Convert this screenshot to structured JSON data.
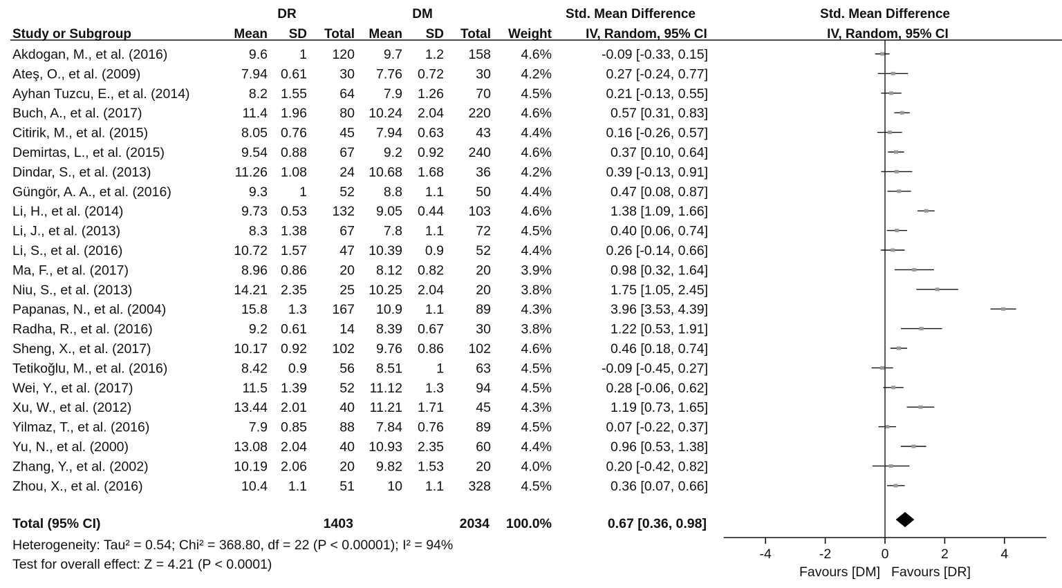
{
  "chart_data": {
    "type": "forest",
    "group_headers": {
      "experimental": "DR",
      "control": "DM",
      "effect_table": "Std. Mean Difference",
      "effect_plot": "Std. Mean Difference"
    },
    "column_headers": {
      "study": "Study or Subgroup",
      "exp_mean": "Mean",
      "exp_sd": "SD",
      "exp_total": "Total",
      "ctl_mean": "Mean",
      "ctl_sd": "SD",
      "ctl_total": "Total",
      "weight": "Weight",
      "ci_table": "IV, Random, 95% CI",
      "ci_plot": "IV, Random, 95% CI"
    },
    "studies": [
      {
        "study": "Akdogan, M., et al. (2016)",
        "exp_mean": "9.6",
        "exp_sd": "1",
        "exp_total": "120",
        "ctl_mean": "9.7",
        "ctl_sd": "1.2",
        "ctl_total": "158",
        "weight": "4.6%",
        "ci_text": "-0.09 [-0.33, 0.15]",
        "smd": -0.09,
        "lo": -0.33,
        "hi": 0.15
      },
      {
        "study": "Ateş, O., et al. (2009)",
        "exp_mean": "7.94",
        "exp_sd": "0.61",
        "exp_total": "30",
        "ctl_mean": "7.76",
        "ctl_sd": "0.72",
        "ctl_total": "30",
        "weight": "4.2%",
        "ci_text": "0.27 [-0.24, 0.77]",
        "smd": 0.27,
        "lo": -0.24,
        "hi": 0.77
      },
      {
        "study": "Ayhan Tuzcu, E., et al. (2014)",
        "exp_mean": "8.2",
        "exp_sd": "1.55",
        "exp_total": "64",
        "ctl_mean": "7.9",
        "ctl_sd": "1.26",
        "ctl_total": "70",
        "weight": "4.5%",
        "ci_text": "0.21 [-0.13, 0.55]",
        "smd": 0.21,
        "lo": -0.13,
        "hi": 0.55
      },
      {
        "study": "Buch, A., et al. (2017)",
        "exp_mean": "11.4",
        "exp_sd": "1.96",
        "exp_total": "80",
        "ctl_mean": "10.24",
        "ctl_sd": "2.04",
        "ctl_total": "220",
        "weight": "4.6%",
        "ci_text": "0.57 [0.31, 0.83]",
        "smd": 0.57,
        "lo": 0.31,
        "hi": 0.83
      },
      {
        "study": "Citirik, M., et al. (2015)",
        "exp_mean": "8.05",
        "exp_sd": "0.76",
        "exp_total": "45",
        "ctl_mean": "7.94",
        "ctl_sd": "0.63",
        "ctl_total": "43",
        "weight": "4.4%",
        "ci_text": "0.16 [-0.26, 0.57]",
        "smd": 0.16,
        "lo": -0.26,
        "hi": 0.57
      },
      {
        "study": "Demirtas, L., et al. (2015)",
        "exp_mean": "9.54",
        "exp_sd": "0.88",
        "exp_total": "67",
        "ctl_mean": "9.2",
        "ctl_sd": "0.92",
        "ctl_total": "240",
        "weight": "4.6%",
        "ci_text": "0.37 [0.10, 0.64]",
        "smd": 0.37,
        "lo": 0.1,
        "hi": 0.64
      },
      {
        "study": "Dindar, S., et al. (2013)",
        "exp_mean": "11.26",
        "exp_sd": "1.08",
        "exp_total": "24",
        "ctl_mean": "10.68",
        "ctl_sd": "1.68",
        "ctl_total": "36",
        "weight": "4.2%",
        "ci_text": "0.39 [-0.13, 0.91]",
        "smd": 0.39,
        "lo": -0.13,
        "hi": 0.91
      },
      {
        "study": "Güngör, A. A., et al. (2016)",
        "exp_mean": "9.3",
        "exp_sd": "1",
        "exp_total": "52",
        "ctl_mean": "8.8",
        "ctl_sd": "1.1",
        "ctl_total": "50",
        "weight": "4.4%",
        "ci_text": "0.47 [0.08, 0.87]",
        "smd": 0.47,
        "lo": 0.08,
        "hi": 0.87
      },
      {
        "study": "Li, H., et al. (2014)",
        "exp_mean": "9.73",
        "exp_sd": "0.53",
        "exp_total": "132",
        "ctl_mean": "9.05",
        "ctl_sd": "0.44",
        "ctl_total": "103",
        "weight": "4.6%",
        "ci_text": "1.38 [1.09, 1.66]",
        "smd": 1.38,
        "lo": 1.09,
        "hi": 1.66
      },
      {
        "study": "Li, J., et al. (2013)",
        "exp_mean": "8.3",
        "exp_sd": "1.38",
        "exp_total": "67",
        "ctl_mean": "7.8",
        "ctl_sd": "1.1",
        "ctl_total": "72",
        "weight": "4.5%",
        "ci_text": "0.40 [0.06, 0.74]",
        "smd": 0.4,
        "lo": 0.06,
        "hi": 0.74
      },
      {
        "study": "Li, S., et al. (2016)",
        "exp_mean": "10.72",
        "exp_sd": "1.57",
        "exp_total": "47",
        "ctl_mean": "10.39",
        "ctl_sd": "0.9",
        "ctl_total": "52",
        "weight": "4.4%",
        "ci_text": "0.26 [-0.14, 0.66]",
        "smd": 0.26,
        "lo": -0.14,
        "hi": 0.66
      },
      {
        "study": "Ma, F., et al. (2017)",
        "exp_mean": "8.96",
        "exp_sd": "0.86",
        "exp_total": "20",
        "ctl_mean": "8.12",
        "ctl_sd": "0.82",
        "ctl_total": "20",
        "weight": "3.9%",
        "ci_text": "0.98 [0.32, 1.64]",
        "smd": 0.98,
        "lo": 0.32,
        "hi": 1.64
      },
      {
        "study": "Niu, S., et al. (2013)",
        "exp_mean": "14.21",
        "exp_sd": "2.35",
        "exp_total": "25",
        "ctl_mean": "10.25",
        "ctl_sd": "2.04",
        "ctl_total": "20",
        "weight": "3.8%",
        "ci_text": "1.75 [1.05, 2.45]",
        "smd": 1.75,
        "lo": 1.05,
        "hi": 2.45
      },
      {
        "study": "Papanas, N., et al. (2004)",
        "exp_mean": "15.8",
        "exp_sd": "1.3",
        "exp_total": "167",
        "ctl_mean": "10.9",
        "ctl_sd": "1.1",
        "ctl_total": "89",
        "weight": "4.3%",
        "ci_text": "3.96 [3.53, 4.39]",
        "smd": 3.96,
        "lo": 3.53,
        "hi": 4.39
      },
      {
        "study": "Radha, R., et al. (2016)",
        "exp_mean": "9.2",
        "exp_sd": "0.61",
        "exp_total": "14",
        "ctl_mean": "8.39",
        "ctl_sd": "0.67",
        "ctl_total": "30",
        "weight": "3.8%",
        "ci_text": "1.22 [0.53, 1.91]",
        "smd": 1.22,
        "lo": 0.53,
        "hi": 1.91
      },
      {
        "study": "Sheng, X., et al. (2017)",
        "exp_mean": "10.17",
        "exp_sd": "0.92",
        "exp_total": "102",
        "ctl_mean": "9.76",
        "ctl_sd": "0.86",
        "ctl_total": "102",
        "weight": "4.6%",
        "ci_text": "0.46 [0.18, 0.74]",
        "smd": 0.46,
        "lo": 0.18,
        "hi": 0.74
      },
      {
        "study": "Tetikoğlu, M., et al. (2016)",
        "exp_mean": "8.42",
        "exp_sd": "0.9",
        "exp_total": "56",
        "ctl_mean": "8.51",
        "ctl_sd": "1",
        "ctl_total": "63",
        "weight": "4.5%",
        "ci_text": "-0.09 [-0.45, 0.27]",
        "smd": -0.09,
        "lo": -0.45,
        "hi": 0.27
      },
      {
        "study": "Wei, Y., et al. (2017)",
        "exp_mean": "11.5",
        "exp_sd": "1.39",
        "exp_total": "52",
        "ctl_mean": "11.12",
        "ctl_sd": "1.3",
        "ctl_total": "94",
        "weight": "4.5%",
        "ci_text": "0.28 [-0.06, 0.62]",
        "smd": 0.28,
        "lo": -0.06,
        "hi": 0.62
      },
      {
        "study": "Xu, W., et al. (2012)",
        "exp_mean": "13.44",
        "exp_sd": "2.01",
        "exp_total": "40",
        "ctl_mean": "11.21",
        "ctl_sd": "1.71",
        "ctl_total": "45",
        "weight": "4.3%",
        "ci_text": "1.19 [0.73, 1.65]",
        "smd": 1.19,
        "lo": 0.73,
        "hi": 1.65
      },
      {
        "study": "Yilmaz, T., et al. (2016)",
        "exp_mean": "7.9",
        "exp_sd": "0.85",
        "exp_total": "88",
        "ctl_mean": "7.84",
        "ctl_sd": "0.76",
        "ctl_total": "89",
        "weight": "4.5%",
        "ci_text": "0.07 [-0.22, 0.37]",
        "smd": 0.07,
        "lo": -0.22,
        "hi": 0.37
      },
      {
        "study": "Yu, N., et al. (2000)",
        "exp_mean": "13.08",
        "exp_sd": "2.04",
        "exp_total": "40",
        "ctl_mean": "10.93",
        "ctl_sd": "2.35",
        "ctl_total": "60",
        "weight": "4.4%",
        "ci_text": "0.96 [0.53, 1.38]",
        "smd": 0.96,
        "lo": 0.53,
        "hi": 1.38
      },
      {
        "study": "Zhang, Y., et al. (2002)",
        "exp_mean": "10.19",
        "exp_sd": "2.06",
        "exp_total": "20",
        "ctl_mean": "9.82",
        "ctl_sd": "1.53",
        "ctl_total": "20",
        "weight": "4.0%",
        "ci_text": "0.20 [-0.42, 0.82]",
        "smd": 0.2,
        "lo": -0.42,
        "hi": 0.82
      },
      {
        "study": "Zhou, X., et al. (2016)",
        "exp_mean": "10.4",
        "exp_sd": "1.1",
        "exp_total": "51",
        "ctl_mean": "10",
        "ctl_sd": "1.1",
        "ctl_total": "328",
        "weight": "4.5%",
        "ci_text": "0.36 [0.07, 0.66]",
        "smd": 0.36,
        "lo": 0.07,
        "hi": 0.66
      }
    ],
    "total": {
      "label": "Total (95% CI)",
      "exp_total": "1403",
      "ctl_total": "2034",
      "weight": "100.0%",
      "ci_text": "0.67 [0.36, 0.98]",
      "smd": 0.67,
      "lo": 0.36,
      "hi": 0.98
    },
    "heterogeneity": "Heterogeneity: Tau² = 0.54; Chi² = 368.80, df = 22 (P < 0.00001); I² = 94%",
    "overall_effect": "Test for overall effect: Z = 4.21 (P < 0.0001)",
    "x_axis": {
      "range": [
        -5.4,
        5.4
      ],
      "ticks": [
        -4,
        -2,
        0,
        2,
        4
      ],
      "tick_labels": [
        "-4",
        "-2",
        "0",
        "2",
        "4"
      ],
      "favours_left": "Favours [DM]",
      "favours_right": "Favours [DR]"
    },
    "colors": {
      "text": "#111111",
      "marker": "#9a9a9a",
      "diamond": "#000000"
    }
  }
}
